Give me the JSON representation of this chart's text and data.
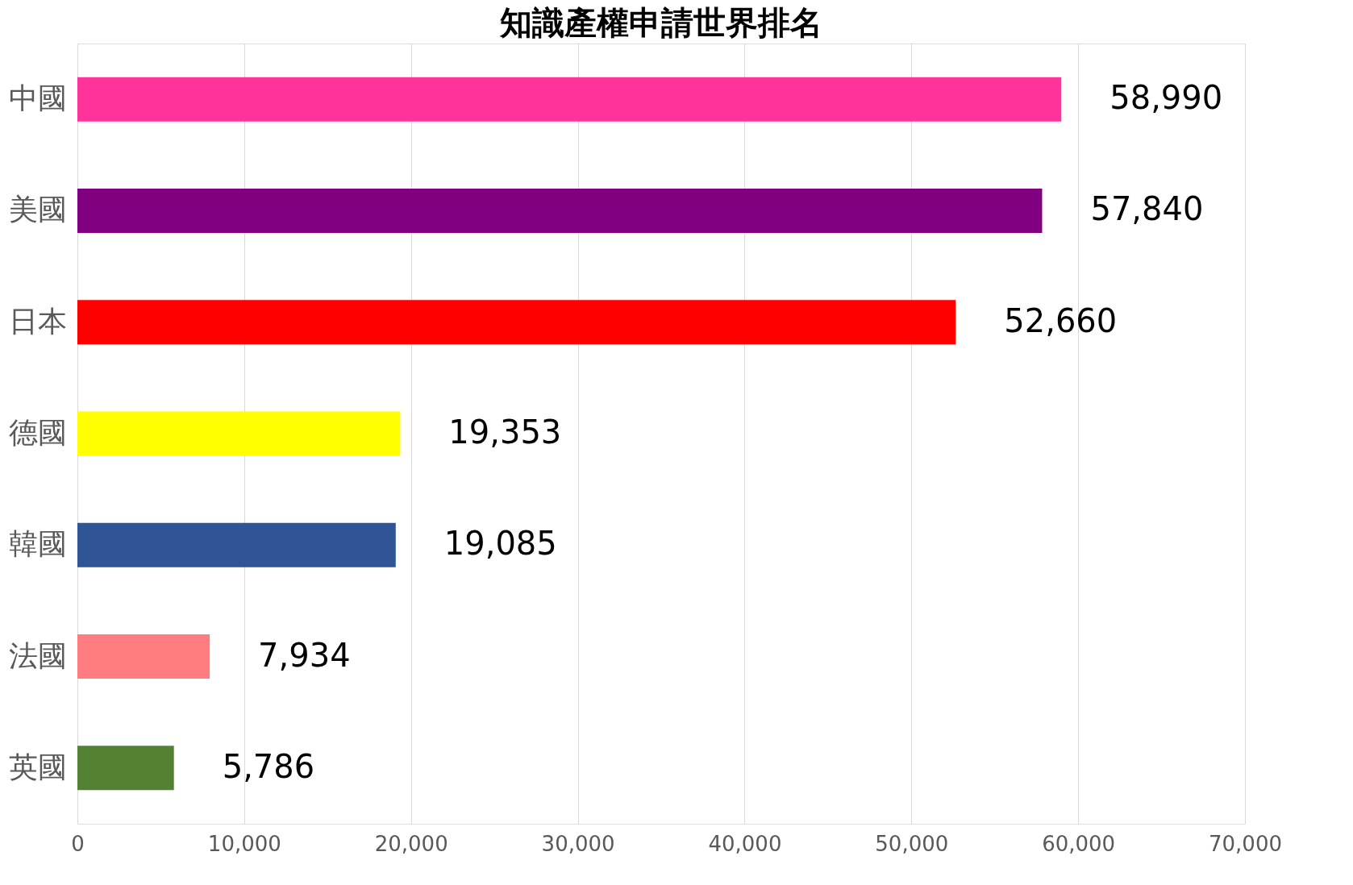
{
  "chart_data": {
    "type": "bar",
    "orientation": "horizontal",
    "title": "知識產權申請世界排名",
    "categories": [
      "中國",
      "美國",
      "日本",
      "德國",
      "韓國",
      "法國",
      "英國"
    ],
    "values": [
      58990,
      57840,
      52660,
      19353,
      19085,
      7934,
      5786
    ],
    "colors": [
      "#ff3399",
      "#800080",
      "#ff0000",
      "#ffff00",
      "#2f5597",
      "#ff7c80",
      "#548235"
    ],
    "xlim": [
      0,
      70000
    ],
    "xticks": [
      {
        "value": 0,
        "label": "0"
      },
      {
        "value": 10000,
        "label": "10,000"
      },
      {
        "value": 20000,
        "label": "20,000"
      },
      {
        "value": 30000,
        "label": "30,000"
      },
      {
        "value": 40000,
        "label": "40,000"
      },
      {
        "value": 50000,
        "label": "50,000"
      },
      {
        "value": 60000,
        "label": "60,000"
      },
      {
        "value": 70000,
        "label": "70,000"
      }
    ],
    "value_labels": [
      "58,990",
      "57,840",
      "52,660",
      "19,353",
      "19,085",
      "7,934",
      "5,786"
    ],
    "grid": "x"
  }
}
